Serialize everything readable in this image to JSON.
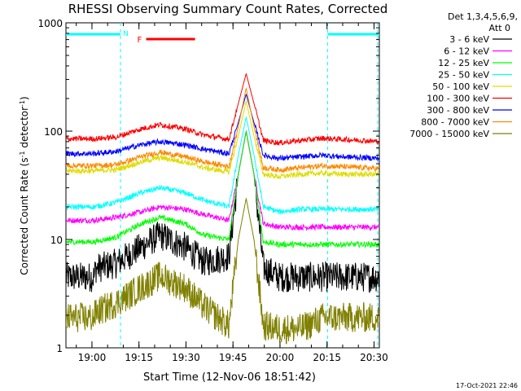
{
  "chart_data": {
    "type": "line",
    "title": "RHESSI Observing Summary Count Rates, Corrected",
    "xlabel": "Start Time (12-Nov-06 18:51:42)",
    "ylabel_parts": [
      "Corrected Count Rate (s",
      "-1",
      " detector",
      "-1",
      ")"
    ],
    "yscale": "log",
    "ylim": [
      1,
      1000
    ],
    "xlim_minutes": [
      0,
      100
    ],
    "x_ticks": [
      {
        "label": "19:00",
        "minute": 8.3
      },
      {
        "label": "19:15",
        "minute": 23.3
      },
      {
        "label": "19:30",
        "minute": 38.3
      },
      {
        "label": "19:45",
        "minute": 53.3
      },
      {
        "label": "20:00",
        "minute": 68.3
      },
      {
        "label": "20:15",
        "minute": 83.3
      },
      {
        "label": "20:30",
        "minute": 98.3
      }
    ],
    "y_ticks": [
      {
        "label": "1",
        "value": 1
      },
      {
        "label": "10",
        "value": 10
      },
      {
        "label": "100",
        "value": 100
      },
      {
        "label": "1000",
        "value": 1000
      }
    ],
    "legend_header": [
      "Det 1,3,4,5,6,9,",
      "Att 0"
    ],
    "legend_position": "right",
    "series": [
      {
        "name": "3 - 6 keV",
        "color": "#000000",
        "x": [
          0,
          9,
          9.4,
          16,
          24,
          30,
          38,
          44,
          52,
          55,
          57.5,
          60,
          63,
          68,
          75,
          82,
          88,
          95,
          100
        ],
        "y": [
          4.5,
          4.5,
          5.4,
          6.0,
          8.5,
          11,
          8.5,
          6.2,
          7.0,
          40,
          100,
          40,
          5.5,
          4.5,
          4.5,
          4.5,
          4.5,
          4.5,
          4.5
        ]
      },
      {
        "name": "6 - 12 keV",
        "color": "#ff00ff",
        "x": [
          0,
          9,
          16,
          24,
          30,
          38,
          44,
          52,
          55,
          57.5,
          60,
          63,
          68,
          75,
          82,
          88,
          95,
          100
        ],
        "y": [
          15,
          15,
          16,
          18,
          20,
          19,
          17,
          15,
          40,
          100,
          40,
          14,
          13,
          13,
          13,
          13,
          13,
          13
        ]
      },
      {
        "name": "12 - 25 keV",
        "color": "#00ff00",
        "x": [
          0,
          9,
          16,
          24,
          30,
          38,
          44,
          52,
          55,
          57.5,
          60,
          63,
          68,
          75,
          82,
          88,
          95,
          100
        ],
        "y": [
          9.5,
          9.5,
          10.5,
          14,
          16,
          14,
          11,
          10,
          40,
          100,
          40,
          9.5,
          9,
          9,
          9,
          9,
          9,
          9
        ]
      },
      {
        "name": "25 - 50 keV",
        "color": "#00ffff",
        "x": [
          0,
          9,
          16,
          24,
          30,
          38,
          44,
          52,
          55,
          57.5,
          60,
          63,
          68,
          75,
          82,
          88,
          95,
          100
        ],
        "y": [
          20,
          20,
          22,
          27,
          30,
          27,
          23,
          20,
          60,
          135,
          60,
          20,
          18,
          19,
          19,
          19,
          19,
          19
        ]
      },
      {
        "name": "50 - 100 keV",
        "color": "#dddd00",
        "x": [
          0,
          9,
          16,
          24,
          30,
          38,
          44,
          52,
          55,
          57.5,
          60,
          63,
          68,
          75,
          82,
          88,
          95,
          100
        ],
        "y": [
          43,
          43,
          44,
          52,
          57,
          52,
          46,
          42,
          90,
          190,
          90,
          40,
          38,
          40,
          41,
          40,
          40,
          40
        ]
      },
      {
        "name": "100 - 300 keV",
        "color": "#ff0000",
        "x": [
          0,
          9,
          16,
          24,
          30,
          38,
          44,
          52,
          55,
          57.5,
          60,
          63,
          68,
          75,
          82,
          88,
          95,
          100
        ],
        "y": [
          85,
          85,
          88,
          105,
          115,
          105,
          92,
          84,
          180,
          340,
          180,
          82,
          78,
          82,
          86,
          84,
          82,
          80
        ]
      },
      {
        "name": "300 - 800 keV",
        "color": "#0000ff",
        "x": [
          0,
          9,
          16,
          24,
          30,
          38,
          44,
          52,
          55,
          57.5,
          60,
          63,
          68,
          75,
          82,
          88,
          95,
          100
        ],
        "y": [
          62,
          62,
          65,
          75,
          80,
          75,
          68,
          62,
          120,
          220,
          120,
          60,
          56,
          58,
          60,
          58,
          57,
          56
        ]
      },
      {
        "name": "800 - 7000 keV",
        "color": "#ff8800",
        "x": [
          0,
          9,
          16,
          24,
          30,
          38,
          44,
          52,
          55,
          57.5,
          60,
          63,
          68,
          75,
          82,
          88,
          95,
          100
        ],
        "y": [
          48,
          48,
          49,
          58,
          64,
          58,
          52,
          47,
          110,
          250,
          110,
          46,
          44,
          46,
          48,
          47,
          46,
          45
        ]
      },
      {
        "name": "7000 - 15000 keV",
        "color": "#808000",
        "x": [
          0,
          9,
          9.4,
          16,
          24,
          30,
          38,
          44,
          52,
          55,
          57.5,
          60,
          63,
          68,
          75,
          82,
          88,
          95,
          100
        ],
        "y": [
          1.9,
          1.9,
          2.1,
          2.6,
          3.6,
          4.6,
          3.6,
          2.4,
          1.6,
          10,
          24,
          10,
          1.6,
          1.5,
          1.5,
          1.9,
          1.9,
          1.9,
          1.9
        ]
      }
    ],
    "attenuator_state_bars": [
      {
        "label": "N",
        "color": "#00ffff",
        "segments": [
          [
            0,
            17.4
          ],
          [
            83.5,
            100
          ]
        ]
      }
    ],
    "flare_flag_bars": [
      {
        "label": "F",
        "color": "#ff0000",
        "segments": [
          [
            25.6,
            41.2
          ]
        ]
      }
    ],
    "dashed_markers_minutes": [
      17.4,
      83.5,
      100
    ],
    "footer_date": "17-Oct-2021 22:46"
  }
}
